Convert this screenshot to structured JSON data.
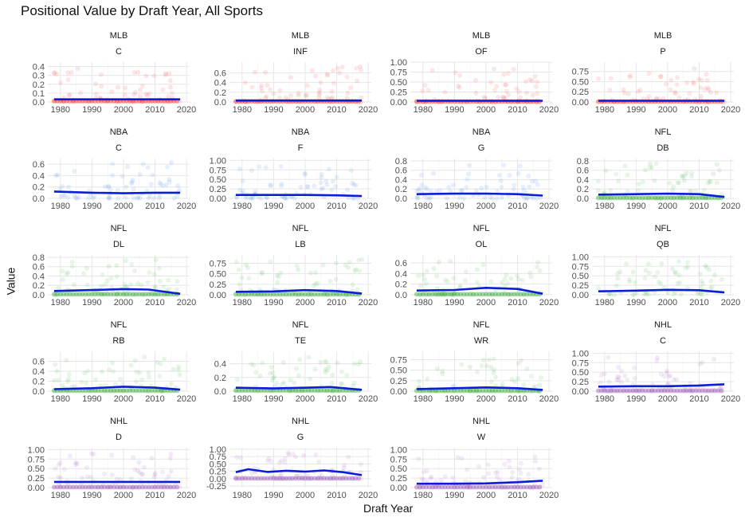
{
  "chart_data": {
    "type": "scatter",
    "title": "Positional Value by Draft Year, All Sports",
    "xlabel": "Draft Year",
    "ylabel": "Value",
    "x_ticks": [
      1980,
      1990,
      2000,
      2010,
      2020
    ],
    "grid": true,
    "legend": "none",
    "sport_colors": {
      "MLB": "#f03030",
      "NBA": "#3a78e0",
      "NFL": "#3aaa3a",
      "NHL": "#9b59b6"
    },
    "trend_color": "#0a1ed8",
    "panels": [
      {
        "sport": "MLB",
        "position": "C",
        "ylim": [
          0,
          0.45
        ],
        "yticks": [
          0,
          0.1,
          0.2,
          0.3,
          0.4
        ],
        "ytick_labels": [
          "0.0",
          "0.1",
          "0.2",
          "0.3",
          "0.4"
        ],
        "trend_x": [
          1978,
          2018
        ],
        "trend_y": [
          0.03,
          0.03
        ],
        "base_dots": true
      },
      {
        "sport": "MLB",
        "position": "INF",
        "ylim": [
          0,
          0.82
        ],
        "yticks": [
          0,
          0.2,
          0.4,
          0.6
        ],
        "ytick_labels": [
          "0.0",
          "0.2",
          "0.4",
          "0.6"
        ],
        "trend_x": [
          1978,
          2018
        ],
        "trend_y": [
          0.03,
          0.03
        ],
        "base_dots": true
      },
      {
        "sport": "MLB",
        "position": "OF",
        "ylim": [
          0,
          1.0
        ],
        "yticks": [
          0,
          0.25,
          0.5,
          0.75,
          1.0
        ],
        "ytick_labels": [
          "0.00",
          "0.25",
          "0.50",
          "0.75",
          "1.00"
        ],
        "trend_x": [
          1978,
          2018
        ],
        "trend_y": [
          0.03,
          0.03
        ],
        "base_dots": true
      },
      {
        "sport": "MLB",
        "position": "P",
        "ylim": [
          0,
          0.98
        ],
        "yticks": [
          0,
          0.25,
          0.5,
          0.75
        ],
        "ytick_labels": [
          "0.00",
          "0.25",
          "0.50",
          "0.75"
        ],
        "trend_x": [
          1978,
          2018
        ],
        "trend_y": [
          0.03,
          0.03
        ],
        "base_dots": true
      },
      {
        "sport": "NBA",
        "position": "C",
        "ylim": [
          0,
          0.7
        ],
        "yticks": [
          0,
          0.2,
          0.4,
          0.6
        ],
        "ytick_labels": [
          "0.0",
          "0.2",
          "0.4",
          "0.6"
        ],
        "trend_x": [
          1978,
          1990,
          2000,
          2010,
          2018
        ],
        "trend_y": [
          0.12,
          0.1,
          0.09,
          0.1,
          0.1
        ],
        "base_dots": false
      },
      {
        "sport": "NBA",
        "position": "F",
        "ylim": [
          0,
          1.05
        ],
        "yticks": [
          0,
          0.25,
          0.5,
          0.75,
          1.0
        ],
        "ytick_labels": [
          "0.00",
          "0.25",
          "0.50",
          "0.75",
          "1.00"
        ],
        "trend_x": [
          1978,
          1990,
          2000,
          2010,
          2018
        ],
        "trend_y": [
          0.09,
          0.09,
          0.09,
          0.08,
          0.06
        ],
        "base_dots": false
      },
      {
        "sport": "NBA",
        "position": "G",
        "ylim": [
          0,
          0.85
        ],
        "yticks": [
          0,
          0.2,
          0.4,
          0.6,
          0.8
        ],
        "ytick_labels": [
          "0.0",
          "0.2",
          "0.4",
          "0.6",
          "0.8"
        ],
        "trend_x": [
          1978,
          1990,
          2000,
          2010,
          2018
        ],
        "trend_y": [
          0.09,
          0.1,
          0.1,
          0.09,
          0.06
        ],
        "base_dots": false
      },
      {
        "sport": "NFL",
        "position": "DB",
        "ylim": [
          0,
          0.85
        ],
        "yticks": [
          0,
          0.2,
          0.4,
          0.6,
          0.8
        ],
        "ytick_labels": [
          "0.0",
          "0.2",
          "0.4",
          "0.6",
          "0.8"
        ],
        "trend_x": [
          1978,
          1990,
          2000,
          2010,
          2018
        ],
        "trend_y": [
          0.08,
          0.09,
          0.1,
          0.09,
          0.03
        ],
        "base_dots": true
      },
      {
        "sport": "NFL",
        "position": "DL",
        "ylim": [
          0,
          0.85
        ],
        "yticks": [
          0,
          0.2,
          0.4,
          0.6,
          0.8
        ],
        "ytick_labels": [
          "0.0",
          "0.2",
          "0.4",
          "0.6",
          "0.8"
        ],
        "trend_x": [
          1978,
          1990,
          2000,
          2008,
          2018
        ],
        "trend_y": [
          0.08,
          0.1,
          0.12,
          0.11,
          0.02
        ],
        "base_dots": true
      },
      {
        "sport": "NFL",
        "position": "LB",
        "ylim": [
          0,
          0.95
        ],
        "yticks": [
          0,
          0.25,
          0.5,
          0.75
        ],
        "ytick_labels": [
          "0.00",
          "0.25",
          "0.50",
          "0.75"
        ],
        "trend_x": [
          1978,
          1990,
          2000,
          2010,
          2018
        ],
        "trend_y": [
          0.07,
          0.08,
          0.11,
          0.09,
          0.03
        ],
        "base_dots": true
      },
      {
        "sport": "NFL",
        "position": "OL",
        "ylim": [
          0,
          0.75
        ],
        "yticks": [
          0,
          0.2,
          0.4,
          0.6
        ],
        "ytick_labels": [
          "0.0",
          "0.2",
          "0.4",
          "0.6"
        ],
        "trend_x": [
          1978,
          1990,
          2000,
          2010,
          2018
        ],
        "trend_y": [
          0.08,
          0.09,
          0.13,
          0.11,
          0.02
        ],
        "base_dots": true
      },
      {
        "sport": "NFL",
        "position": "QB",
        "ylim": [
          0,
          1.05
        ],
        "yticks": [
          0,
          0.25,
          0.5,
          0.75,
          1.0
        ],
        "ytick_labels": [
          "0.00",
          "0.25",
          "0.50",
          "0.75",
          "1.00"
        ],
        "trend_x": [
          1978,
          1990,
          2000,
          2010,
          2018
        ],
        "trend_y": [
          0.09,
          0.11,
          0.13,
          0.12,
          0.06
        ],
        "base_dots": false
      },
      {
        "sport": "NFL",
        "position": "RB",
        "ylim": [
          0,
          0.8
        ],
        "yticks": [
          0,
          0.2,
          0.4,
          0.6
        ],
        "ytick_labels": [
          "0.0",
          "0.2",
          "0.4",
          "0.6"
        ],
        "trend_x": [
          1978,
          1990,
          2000,
          2010,
          2018
        ],
        "trend_y": [
          0.04,
          0.06,
          0.09,
          0.07,
          0.03
        ],
        "base_dots": true
      },
      {
        "sport": "NFL",
        "position": "TE",
        "ylim": [
          0,
          0.58
        ],
        "yticks": [
          0,
          0.2,
          0.4
        ],
        "ytick_labels": [
          "0.0",
          "0.2",
          "0.4"
        ],
        "trend_x": [
          1978,
          1990,
          2000,
          2008,
          2018
        ],
        "trend_y": [
          0.05,
          0.04,
          0.05,
          0.06,
          0.02
        ],
        "base_dots": true
      },
      {
        "sport": "NFL",
        "position": "WR",
        "ylim": [
          0,
          0.95
        ],
        "yticks": [
          0,
          0.25,
          0.5,
          0.75
        ],
        "ytick_labels": [
          "0.00",
          "0.25",
          "0.50",
          "0.75"
        ],
        "trend_x": [
          1978,
          1990,
          2000,
          2010,
          2018
        ],
        "trend_y": [
          0.05,
          0.07,
          0.09,
          0.07,
          0.03
        ],
        "base_dots": true
      },
      {
        "sport": "NHL",
        "position": "C",
        "ylim": [
          0,
          1.05
        ],
        "yticks": [
          0,
          0.25,
          0.5,
          0.75,
          1.0
        ],
        "ytick_labels": [
          "0.00",
          "0.25",
          "0.50",
          "0.75",
          "1.00"
        ],
        "trend_x": [
          1978,
          1990,
          2000,
          2010,
          2018
        ],
        "trend_y": [
          0.12,
          0.13,
          0.13,
          0.15,
          0.18
        ],
        "base_dots": true
      },
      {
        "sport": "NHL",
        "position": "D",
        "ylim": [
          0,
          1.05
        ],
        "yticks": [
          0,
          0.25,
          0.5,
          0.75,
          1.0
        ],
        "ytick_labels": [
          "0.00",
          "0.25",
          "0.50",
          "0.75",
          "1.00"
        ],
        "trend_x": [
          1978,
          1990,
          2000,
          2010,
          2018
        ],
        "trend_y": [
          0.15,
          0.15,
          0.15,
          0.15,
          0.15
        ],
        "base_dots": true
      },
      {
        "sport": "NHL",
        "position": "G",
        "ylim": [
          -0.3,
          1.05
        ],
        "yticks": [
          -0.25,
          0,
          0.25,
          0.5,
          0.75,
          1.0
        ],
        "ytick_labels": [
          "-0.25",
          "0.00",
          "0.25",
          "0.50",
          "0.75",
          "1.00"
        ],
        "trend_x": [
          1978,
          1982,
          1988,
          1994,
          2000,
          2006,
          2012,
          2018
        ],
        "trend_y": [
          0.22,
          0.32,
          0.23,
          0.27,
          0.24,
          0.28,
          0.22,
          0.12
        ],
        "base_dots": true
      },
      {
        "sport": "NHL",
        "position": "W",
        "ylim": [
          0,
          1.05
        ],
        "yticks": [
          0,
          0.25,
          0.5,
          0.75,
          1.0
        ],
        "ytick_labels": [
          "0.00",
          "0.25",
          "0.50",
          "0.75",
          "1.00"
        ],
        "trend_x": [
          1978,
          1990,
          2000,
          2010,
          2018
        ],
        "trend_y": [
          0.1,
          0.1,
          0.11,
          0.14,
          0.18
        ],
        "base_dots": true
      }
    ]
  }
}
